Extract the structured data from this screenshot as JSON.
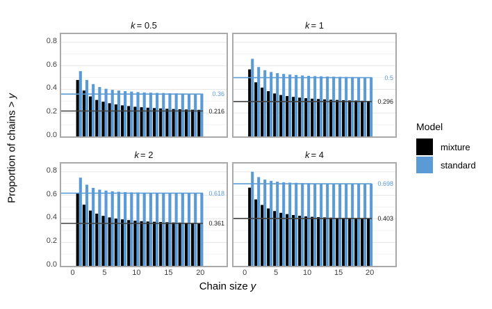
{
  "figure": {
    "colors": {
      "standard_blue": "#5b9bd5",
      "mixture_black": "#000000",
      "ref_line_dark": "#404040",
      "panel_border": "#a9a9a9",
      "grid_major": "#e4e4e4",
      "grid_minor": "#f2f2f2",
      "tick_text": "#404040"
    },
    "y_axis": {
      "title_text": "Proportion of chains >",
      "title_var": "y",
      "ticks": [
        {
          "label": "0.0",
          "value": 0.0
        },
        {
          "label": "0.2",
          "value": 0.2
        },
        {
          "label": "0.4",
          "value": 0.4
        },
        {
          "label": "0.6",
          "value": 0.6
        },
        {
          "label": "0.8",
          "value": 0.8
        }
      ]
    },
    "x_axis": {
      "title_text": "Chain size",
      "title_var": "y",
      "ticks": [
        {
          "label": "0",
          "value": 0
        },
        {
          "label": "5",
          "value": 5
        },
        {
          "label": "10",
          "value": 10
        },
        {
          "label": "15",
          "value": 15
        },
        {
          "label": "20",
          "value": 20
        }
      ]
    },
    "legend": {
      "title": "Model",
      "items": [
        {
          "label": "mixture",
          "color": "#000000"
        },
        {
          "label": "standard",
          "color": "#5b9bd5"
        }
      ]
    }
  },
  "chart_data": {
    "type": "bar",
    "title": "",
    "xlabel": "Chain size y",
    "ylabel": "Proportion of chains > y",
    "ylim": [
      0,
      0.87
    ],
    "xlim": [
      -1.8,
      24.1
    ],
    "grid": "on",
    "legend_position": "right",
    "x": [
      1,
      2,
      3,
      4,
      5,
      6,
      7,
      8,
      9,
      10,
      11,
      12,
      13,
      14,
      15,
      16,
      17,
      18,
      19,
      20
    ],
    "facets": [
      {
        "k_var": "k",
        "k_eq": "= 0.5",
        "standard_ref": 0.36,
        "mixture_ref": 0.216,
        "standard_ref_label": "0.36",
        "mixture_ref_label": "0.216",
        "series": [
          {
            "name": "mixture",
            "values": [
              0.48,
              0.39,
              0.34,
              0.31,
              0.295,
              0.282,
              0.272,
              0.264,
              0.258,
              0.252,
              0.248,
              0.244,
              0.241,
              0.238,
              0.235,
              0.233,
              0.231,
              0.229,
              0.227,
              0.226
            ]
          },
          {
            "name": "standard",
            "values": [
              0.555,
              0.48,
              0.445,
              0.42,
              0.405,
              0.396,
              0.39,
              0.385,
              0.381,
              0.377,
              0.374,
              0.372,
              0.37,
              0.369,
              0.367,
              0.366,
              0.365,
              0.364,
              0.363,
              0.362
            ]
          }
        ]
      },
      {
        "k_var": "k",
        "k_eq": "= 1",
        "standard_ref": 0.5,
        "mixture_ref": 0.296,
        "standard_ref_label": "0.5",
        "mixture_ref_label": "0.296",
        "series": [
          {
            "name": "mixture",
            "values": [
              0.57,
              0.46,
              0.415,
              0.385,
              0.365,
              0.352,
              0.343,
              0.336,
              0.33,
              0.325,
              0.321,
              0.318,
              0.315,
              0.312,
              0.31,
              0.308,
              0.306,
              0.305,
              0.303,
              0.302
            ]
          },
          {
            "name": "standard",
            "values": [
              0.66,
              0.59,
              0.563,
              0.548,
              0.538,
              0.531,
              0.526,
              0.522,
              0.518,
              0.515,
              0.513,
              0.511,
              0.509,
              0.508,
              0.507,
              0.506,
              0.505,
              0.504,
              0.503,
              0.502
            ]
          }
        ]
      },
      {
        "k_var": "k",
        "k_eq": "= 2",
        "standard_ref": 0.618,
        "mixture_ref": 0.361,
        "standard_ref_label": "0.618",
        "mixture_ref_label": "0.361",
        "series": [
          {
            "name": "mixture",
            "values": [
              0.62,
              0.52,
              0.47,
              0.444,
              0.425,
              0.412,
              0.402,
              0.395,
              0.389,
              0.384,
              0.38,
              0.377,
              0.375,
              0.373,
              0.371,
              0.369,
              0.368,
              0.366,
              0.365,
              0.364
            ]
          },
          {
            "name": "standard",
            "values": [
              0.75,
              0.69,
              0.663,
              0.648,
              0.64,
              0.634,
              0.63,
              0.627,
              0.625,
              0.624,
              0.622,
              0.621,
              0.621,
              0.62,
              0.62,
              0.619,
              0.619,
              0.618,
              0.618,
              0.618
            ]
          }
        ]
      },
      {
        "k_var": "k",
        "k_eq": "= 4",
        "standard_ref": 0.698,
        "mixture_ref": 0.403,
        "standard_ref_label": "0.698",
        "mixture_ref_label": "0.403",
        "series": [
          {
            "name": "mixture",
            "values": [
              0.665,
              0.565,
              0.518,
              0.488,
              0.466,
              0.451,
              0.44,
              0.432,
              0.426,
              0.421,
              0.417,
              0.414,
              0.412,
              0.41,
              0.408,
              0.407,
              0.406,
              0.405,
              0.404,
              0.404
            ]
          },
          {
            "name": "standard",
            "values": [
              0.8,
              0.755,
              0.734,
              0.723,
              0.716,
              0.711,
              0.708,
              0.706,
              0.704,
              0.703,
              0.702,
              0.701,
              0.7,
              0.7,
              0.699,
              0.699,
              0.699,
              0.698,
              0.698,
              0.698
            ]
          }
        ]
      }
    ]
  }
}
